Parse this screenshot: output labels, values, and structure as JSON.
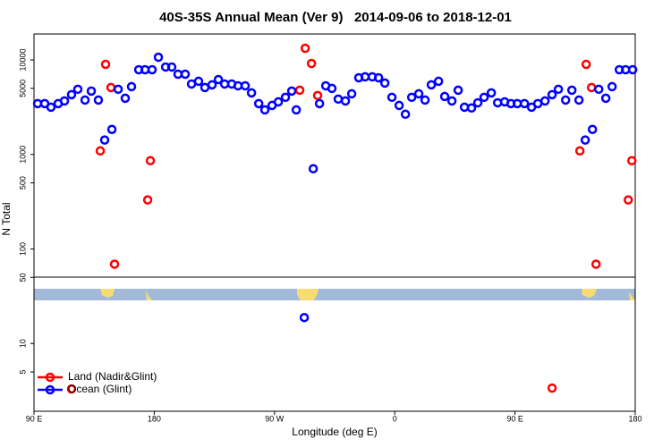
{
  "chart_data": {
    "type": "scatter",
    "title": "40S-35S Annual Mean (Ver 9)   2014-09-06 to 2018-12-01",
    "x_label": "Longitude (deg E)",
    "y_label": "N Total",
    "yscale": "log",
    "xlim": [
      90,
      540
    ],
    "ylim": [
      1.92,
      18800
    ],
    "xticks": [
      {
        "value": 90,
        "label": "90 E"
      },
      {
        "value": 180,
        "label": "180"
      },
      {
        "value": 270,
        "label": "90 W"
      },
      {
        "value": 360,
        "label": "0"
      },
      {
        "value": 450,
        "label": "90 E"
      },
      {
        "value": 540,
        "label": "180"
      }
    ],
    "yticks": [
      5,
      10,
      50,
      100,
      500,
      1000,
      5000,
      10000
    ],
    "legend": "lower left",
    "series": [
      {
        "name": "Land (Nadir&Glint)",
        "color": "#ff0000",
        "x": [
          118.1,
          139.6,
          143.6,
          147.6,
          150.3,
          175.1,
          177.1,
          288.9,
          293.0,
          297.7,
          302.3,
          477.8,
          498.6,
          503.3,
          507.3,
          510.7,
          534.8,
          537.5
        ],
        "values": [
          3.3,
          1090,
          8970,
          5100,
          69,
          330,
          859,
          4780,
          13270,
          9160,
          4200,
          3.37,
          1090,
          8970,
          5100,
          69,
          330,
          859
        ]
      },
      {
        "name": "Ocean (Glint)",
        "color": "#0000ff",
        "x": [
          92.7,
          98.0,
          102.7,
          108.1,
          112.8,
          118.1,
          122.8,
          128.2,
          132.9,
          138.2,
          142.9,
          148.3,
          153.0,
          158.3,
          163.0,
          168.4,
          173.1,
          178.4,
          183.1,
          188.5,
          193.1,
          197.8,
          203.2,
          207.9,
          213.2,
          217.9,
          223.3,
          228.0,
          232.7,
          238.0,
          242.7,
          248.1,
          252.8,
          258.2,
          262.8,
          268.2,
          272.9,
          278.2,
          282.9,
          286.3,
          292.3,
          299.0,
          303.7,
          308.4,
          313.0,
          317.7,
          323.1,
          327.8,
          333.1,
          337.8,
          343.2,
          347.9,
          352.6,
          357.9,
          363.3,
          368.0,
          372.7,
          378.0,
          382.7,
          387.4,
          392.8,
          397.4,
          402.8,
          407.5,
          412.2,
          417.5,
          422.2,
          426.9,
          432.3,
          437.0,
          442.3,
          447.0,
          451.7,
          457.1,
          462.4,
          467.1,
          472.5,
          477.8,
          482.5,
          487.9,
          492.6,
          497.9,
          502.6,
          508.0,
          512.7,
          518.0,
          522.7,
          528.1,
          532.8,
          538.1
        ],
        "values": [
          3450,
          3450,
          3160,
          3450,
          3680,
          4290,
          4890,
          3760,
          4680,
          3760,
          1420,
          1840,
          4890,
          3930,
          5210,
          7870,
          7870,
          7870,
          10670,
          8410,
          8410,
          7060,
          7060,
          5560,
          5940,
          5100,
          5450,
          6200,
          5560,
          5560,
          5320,
          5320,
          4480,
          3450,
          2960,
          3300,
          3600,
          4020,
          4680,
          2960,
          18.8,
          706,
          3450,
          5320,
          4990,
          3850,
          3680,
          4380,
          6470,
          6620,
          6620,
          6470,
          5690,
          4020,
          3300,
          2660,
          4020,
          4380,
          3760,
          5450,
          5940,
          4100,
          3680,
          4780,
          3160,
          3100,
          3520,
          4020,
          4480,
          3520,
          3600,
          3450,
          3450,
          3450,
          3160,
          3450,
          3680,
          4290,
          4890,
          3760,
          4780,
          3760,
          1420,
          1840,
          4890,
          3930,
          5210,
          7870,
          7870,
          7870
        ]
      }
    ]
  }
}
